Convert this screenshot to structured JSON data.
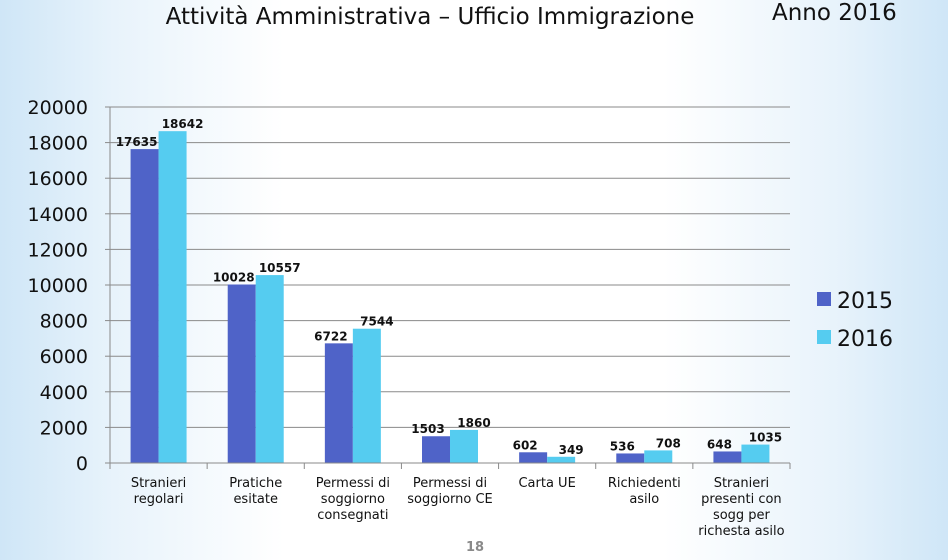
{
  "header": {
    "title": "Attività Amministrativa – Ufficio Immigrazione",
    "year": "Anno 2016"
  },
  "footer": {
    "page_number": "18"
  },
  "chart_data": {
    "type": "bar",
    "title": "Attività Amministrativa – Ufficio Immigrazione",
    "categories": [
      [
        "Stranieri",
        "regolari"
      ],
      [
        "Pratiche",
        "esitate"
      ],
      [
        "Permessi di",
        "soggiorno",
        "consegnati"
      ],
      [
        "Permessi di",
        "soggiorno CE"
      ],
      [
        "Carta UE"
      ],
      [
        "Richiedenti",
        "asilo"
      ],
      [
        "Stranieri",
        "presenti con",
        "sogg per",
        "richesta asilo"
      ]
    ],
    "series": [
      {
        "name": "2015",
        "color": "#4f63c8",
        "values": [
          17635,
          10028,
          6722,
          1503,
          602,
          536,
          648
        ]
      },
      {
        "name": "2016",
        "color": "#55ccf0",
        "values": [
          18642,
          10557,
          7544,
          1860,
          349,
          708,
          1035
        ]
      }
    ],
    "yticks": [
      "0",
      "2000",
      "4000",
      "6000",
      "8000",
      "10000",
      "12000",
      "14000",
      "16000",
      "18000",
      "20000"
    ],
    "ylim": [
      0,
      20000
    ],
    "grid": true,
    "legend": "right"
  }
}
